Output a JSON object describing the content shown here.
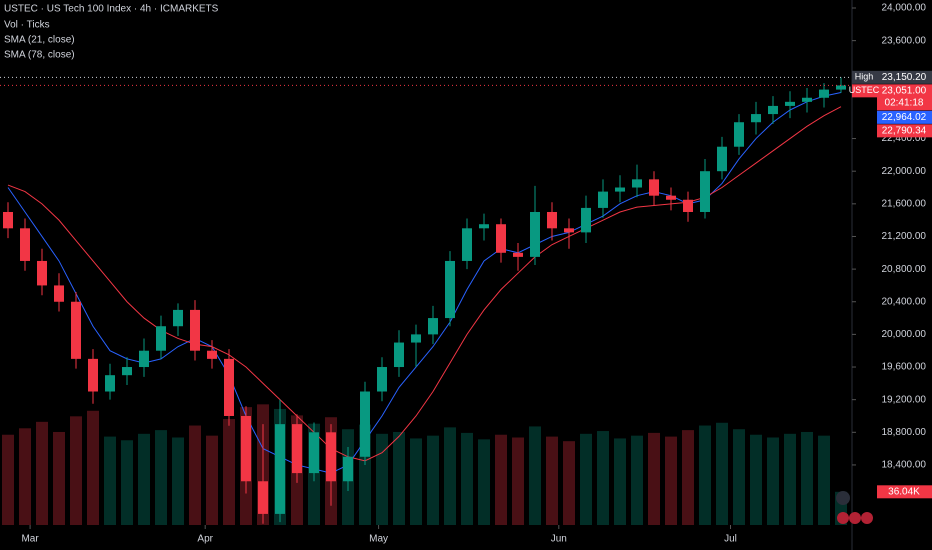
{
  "chart_data": {
    "type": "candlestick",
    "title": "USTEC · US Tech 100 Index · 4h · ICMARKETS",
    "volume_name": "Vol · Ticks",
    "up_color": "#089981",
    "down_color": "#f23645",
    "candles": [
      [
        21500,
        21620,
        21180,
        21300
      ],
      [
        21300,
        21420,
        20780,
        20900
      ],
      [
        20900,
        21050,
        20480,
        20600
      ],
      [
        20600,
        20750,
        20280,
        20400
      ],
      [
        20400,
        20520,
        19580,
        19700
      ],
      [
        19700,
        19820,
        19150,
        19300
      ],
      [
        19300,
        19640,
        19200,
        19500
      ],
      [
        19500,
        19720,
        19380,
        19600
      ],
      [
        19600,
        19950,
        19480,
        19800
      ],
      [
        19800,
        20230,
        19700,
        20100
      ],
      [
        20100,
        20380,
        19980,
        20300
      ],
      [
        20300,
        20420,
        19680,
        19800
      ],
      [
        19800,
        19930,
        19580,
        19700
      ],
      [
        19700,
        19820,
        18880,
        19000
      ],
      [
        19000,
        19120,
        18050,
        18200
      ],
      [
        18200,
        18900,
        17680,
        17800
      ],
      [
        17800,
        19200,
        17700,
        18900
      ],
      [
        18900,
        19020,
        18180,
        18300
      ],
      [
        18300,
        18920,
        18200,
        18800
      ],
      [
        18800,
        18900,
        17900,
        18200
      ],
      [
        18200,
        18620,
        18080,
        18500
      ],
      [
        18500,
        19420,
        18400,
        19300
      ],
      [
        19300,
        19720,
        19180,
        19600
      ],
      [
        19600,
        20050,
        19480,
        19900
      ],
      [
        19900,
        20120,
        19600,
        20000
      ],
      [
        20000,
        20350,
        19880,
        20200
      ],
      [
        20200,
        21020,
        20100,
        20900
      ],
      [
        20900,
        21420,
        20800,
        21300
      ],
      [
        21300,
        21480,
        21150,
        21350
      ],
      [
        21350,
        21420,
        20880,
        21000
      ],
      [
        21000,
        21120,
        20780,
        20950
      ],
      [
        20950,
        21820,
        20850,
        21500
      ],
      [
        21500,
        21620,
        21150,
        21300
      ],
      [
        21300,
        21420,
        21050,
        21250
      ],
      [
        21250,
        21700,
        21120,
        21550
      ],
      [
        21550,
        21900,
        21430,
        21750
      ],
      [
        21750,
        21950,
        21620,
        21800
      ],
      [
        21800,
        22080,
        21680,
        21900
      ],
      [
        21900,
        22000,
        21580,
        21700
      ],
      [
        21700,
        21800,
        21520,
        21650
      ],
      [
        21650,
        21750,
        21380,
        21500
      ],
      [
        21500,
        22150,
        21420,
        22000
      ],
      [
        22000,
        22420,
        21900,
        22300
      ],
      [
        22300,
        22700,
        22200,
        22600
      ],
      [
        22600,
        22850,
        22450,
        22700
      ],
      [
        22700,
        22920,
        22580,
        22800
      ],
      [
        22800,
        22980,
        22650,
        22850
      ],
      [
        22850,
        23020,
        22720,
        22900
      ],
      [
        22900,
        23080,
        22780,
        23000
      ],
      [
        23000,
        23150.2,
        22960,
        23051
      ]
    ],
    "volumes": [
      98000,
      105000,
      112000,
      101000,
      118000,
      124000,
      96000,
      92000,
      99000,
      103000,
      95000,
      108000,
      97000,
      115000,
      128000,
      131000,
      126000,
      119000,
      110000,
      117000,
      104000,
      109000,
      99000,
      101000,
      94000,
      97000,
      106000,
      100000,
      93000,
      98000,
      95000,
      107000,
      96000,
      91000,
      99000,
      102000,
      94000,
      97000,
      100000,
      96000,
      103000,
      108000,
      111000,
      104000,
      98000,
      95000,
      99000,
      101000,
      97000,
      36040
    ],
    "vlim": [
      0,
      570000
    ],
    "series": [
      {
        "name": "SMA (21, close)",
        "color": "#2962ff",
        "values": [
          21800,
          21500,
          21200,
          20900,
          20500,
          20100,
          19800,
          19700,
          19650,
          19700,
          19850,
          19950,
          19850,
          19500,
          19000,
          18600,
          18500,
          18400,
          18350,
          18300,
          18400,
          18700,
          19000,
          19350,
          19600,
          19850,
          20150,
          20550,
          20900,
          21050,
          21000,
          21100,
          21200,
          21250,
          21350,
          21450,
          21600,
          21700,
          21750,
          21700,
          21600,
          21650,
          21850,
          22150,
          22400,
          22600,
          22750,
          22850,
          22920,
          22964.02
        ]
      },
      {
        "name": "SMA (78, close)",
        "color": "#f23645",
        "values": [
          21830,
          21750,
          21600,
          21400,
          21150,
          20900,
          20650,
          20400,
          20200,
          20050,
          19950,
          19880,
          19850,
          19750,
          19600,
          19400,
          19200,
          19000,
          18800,
          18600,
          18500,
          18450,
          18550,
          18750,
          19000,
          19300,
          19650,
          20000,
          20300,
          20550,
          20750,
          20950,
          21100,
          21200,
          21300,
          21400,
          21500,
          21560,
          21580,
          21600,
          21620,
          21680,
          21800,
          21950,
          22100,
          22250,
          22400,
          22550,
          22680,
          22790.34
        ]
      }
    ],
    "xlim": [
      -0.5,
      50
    ],
    "xticks": [
      {
        "value": 1.3,
        "label": "Mar"
      },
      {
        "value": 11.6,
        "label": "Apr"
      },
      {
        "value": 21.8,
        "label": "May"
      },
      {
        "value": 32.4,
        "label": "Jun"
      },
      {
        "value": 42.5,
        "label": "Jul"
      }
    ],
    "ylim": [
      17664,
      24098
    ],
    "yticks": [
      {
        "value": 24000,
        "label": "24,000.00"
      },
      {
        "value": 23600,
        "label": "23,600.00"
      },
      {
        "value": 22400,
        "label": "22,400.00"
      },
      {
        "value": 22000,
        "label": "22,000.00"
      },
      {
        "value": 21600,
        "label": "21,600.00"
      },
      {
        "value": 21200,
        "label": "21,200.00"
      },
      {
        "value": 20800,
        "label": "20,800.00"
      },
      {
        "value": 20400,
        "label": "20,400.00"
      },
      {
        "value": 20000,
        "label": "20,000.00"
      },
      {
        "value": 19600,
        "label": "19,600.00"
      },
      {
        "value": 19200,
        "label": "19,200.00"
      },
      {
        "value": 18800,
        "label": "18,800.00"
      },
      {
        "value": 18400,
        "label": "18,400.00"
      }
    ],
    "price_tags": [
      {
        "name": "High",
        "value": 23150.2,
        "label": "23,150.20",
        "color": "#363a45"
      },
      {
        "name": "USTEC",
        "value": 23051,
        "label": "23,051.00",
        "countdown": "02:41:18",
        "color": "#f23645"
      },
      {
        "value": 22964.02,
        "label": "22,964.02",
        "color": "#2962ff"
      },
      {
        "value": 22790.34,
        "label": "22,790.34",
        "color": "#f23645"
      }
    ],
    "volume_tag": {
      "value": 36040,
      "label": "36.04K",
      "color": "#f23645"
    }
  }
}
